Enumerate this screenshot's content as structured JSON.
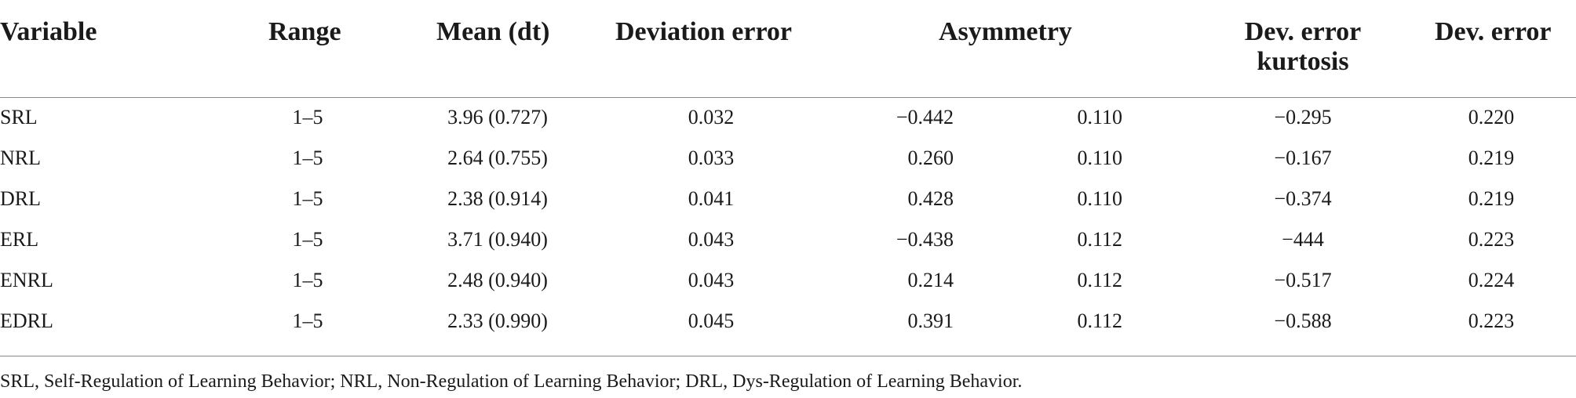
{
  "table": {
    "headers": {
      "variable": "Variable",
      "range": "Range",
      "mean": "Mean (dt)",
      "deviation_error": "Deviation error",
      "asymmetry": "Asymmetry",
      "dev_error_kurtosis": "Dev. error kurtosis",
      "dev_error": "Dev. error"
    },
    "rows": [
      {
        "variable": "SRL",
        "range": "1–5",
        "mean": "3.96 (0.727)",
        "deviation_error": "0.032",
        "asym_value": "−0.442",
        "asym_error": "0.110",
        "kurtosis": "−0.295",
        "dev_error": "0.220"
      },
      {
        "variable": "NRL",
        "range": "1–5",
        "mean": "2.64 (0.755)",
        "deviation_error": "0.033",
        "asym_value": "0.260",
        "asym_error": "0.110",
        "kurtosis": "−0.167",
        "dev_error": "0.219"
      },
      {
        "variable": "DRL",
        "range": "1–5",
        "mean": "2.38 (0.914)",
        "deviation_error": "0.041",
        "asym_value": "0.428",
        "asym_error": "0.110",
        "kurtosis": "−0.374",
        "dev_error": "0.219"
      },
      {
        "variable": "ERL",
        "range": "1–5",
        "mean": "3.71 (0.940)",
        "deviation_error": "0.043",
        "asym_value": "−0.438",
        "asym_error": "0.112",
        "kurtosis": "−444",
        "dev_error": "0.223"
      },
      {
        "variable": "ENRL",
        "range": "1–5",
        "mean": "2.48 (0.940)",
        "deviation_error": "0.043",
        "asym_value": "0.214",
        "asym_error": "0.112",
        "kurtosis": "−0.517",
        "dev_error": "0.224"
      },
      {
        "variable": "EDRL",
        "range": "1–5",
        "mean": "2.33 (0.990)",
        "deviation_error": "0.045",
        "asym_value": "0.391",
        "asym_error": "0.112",
        "kurtosis": "−0.588",
        "dev_error": "0.223"
      }
    ]
  },
  "footnote": "SRL, Self-Regulation of Learning Behavior; NRL, Non-Regulation of Learning Behavior; DRL, Dys-Regulation of Learning Behavior."
}
